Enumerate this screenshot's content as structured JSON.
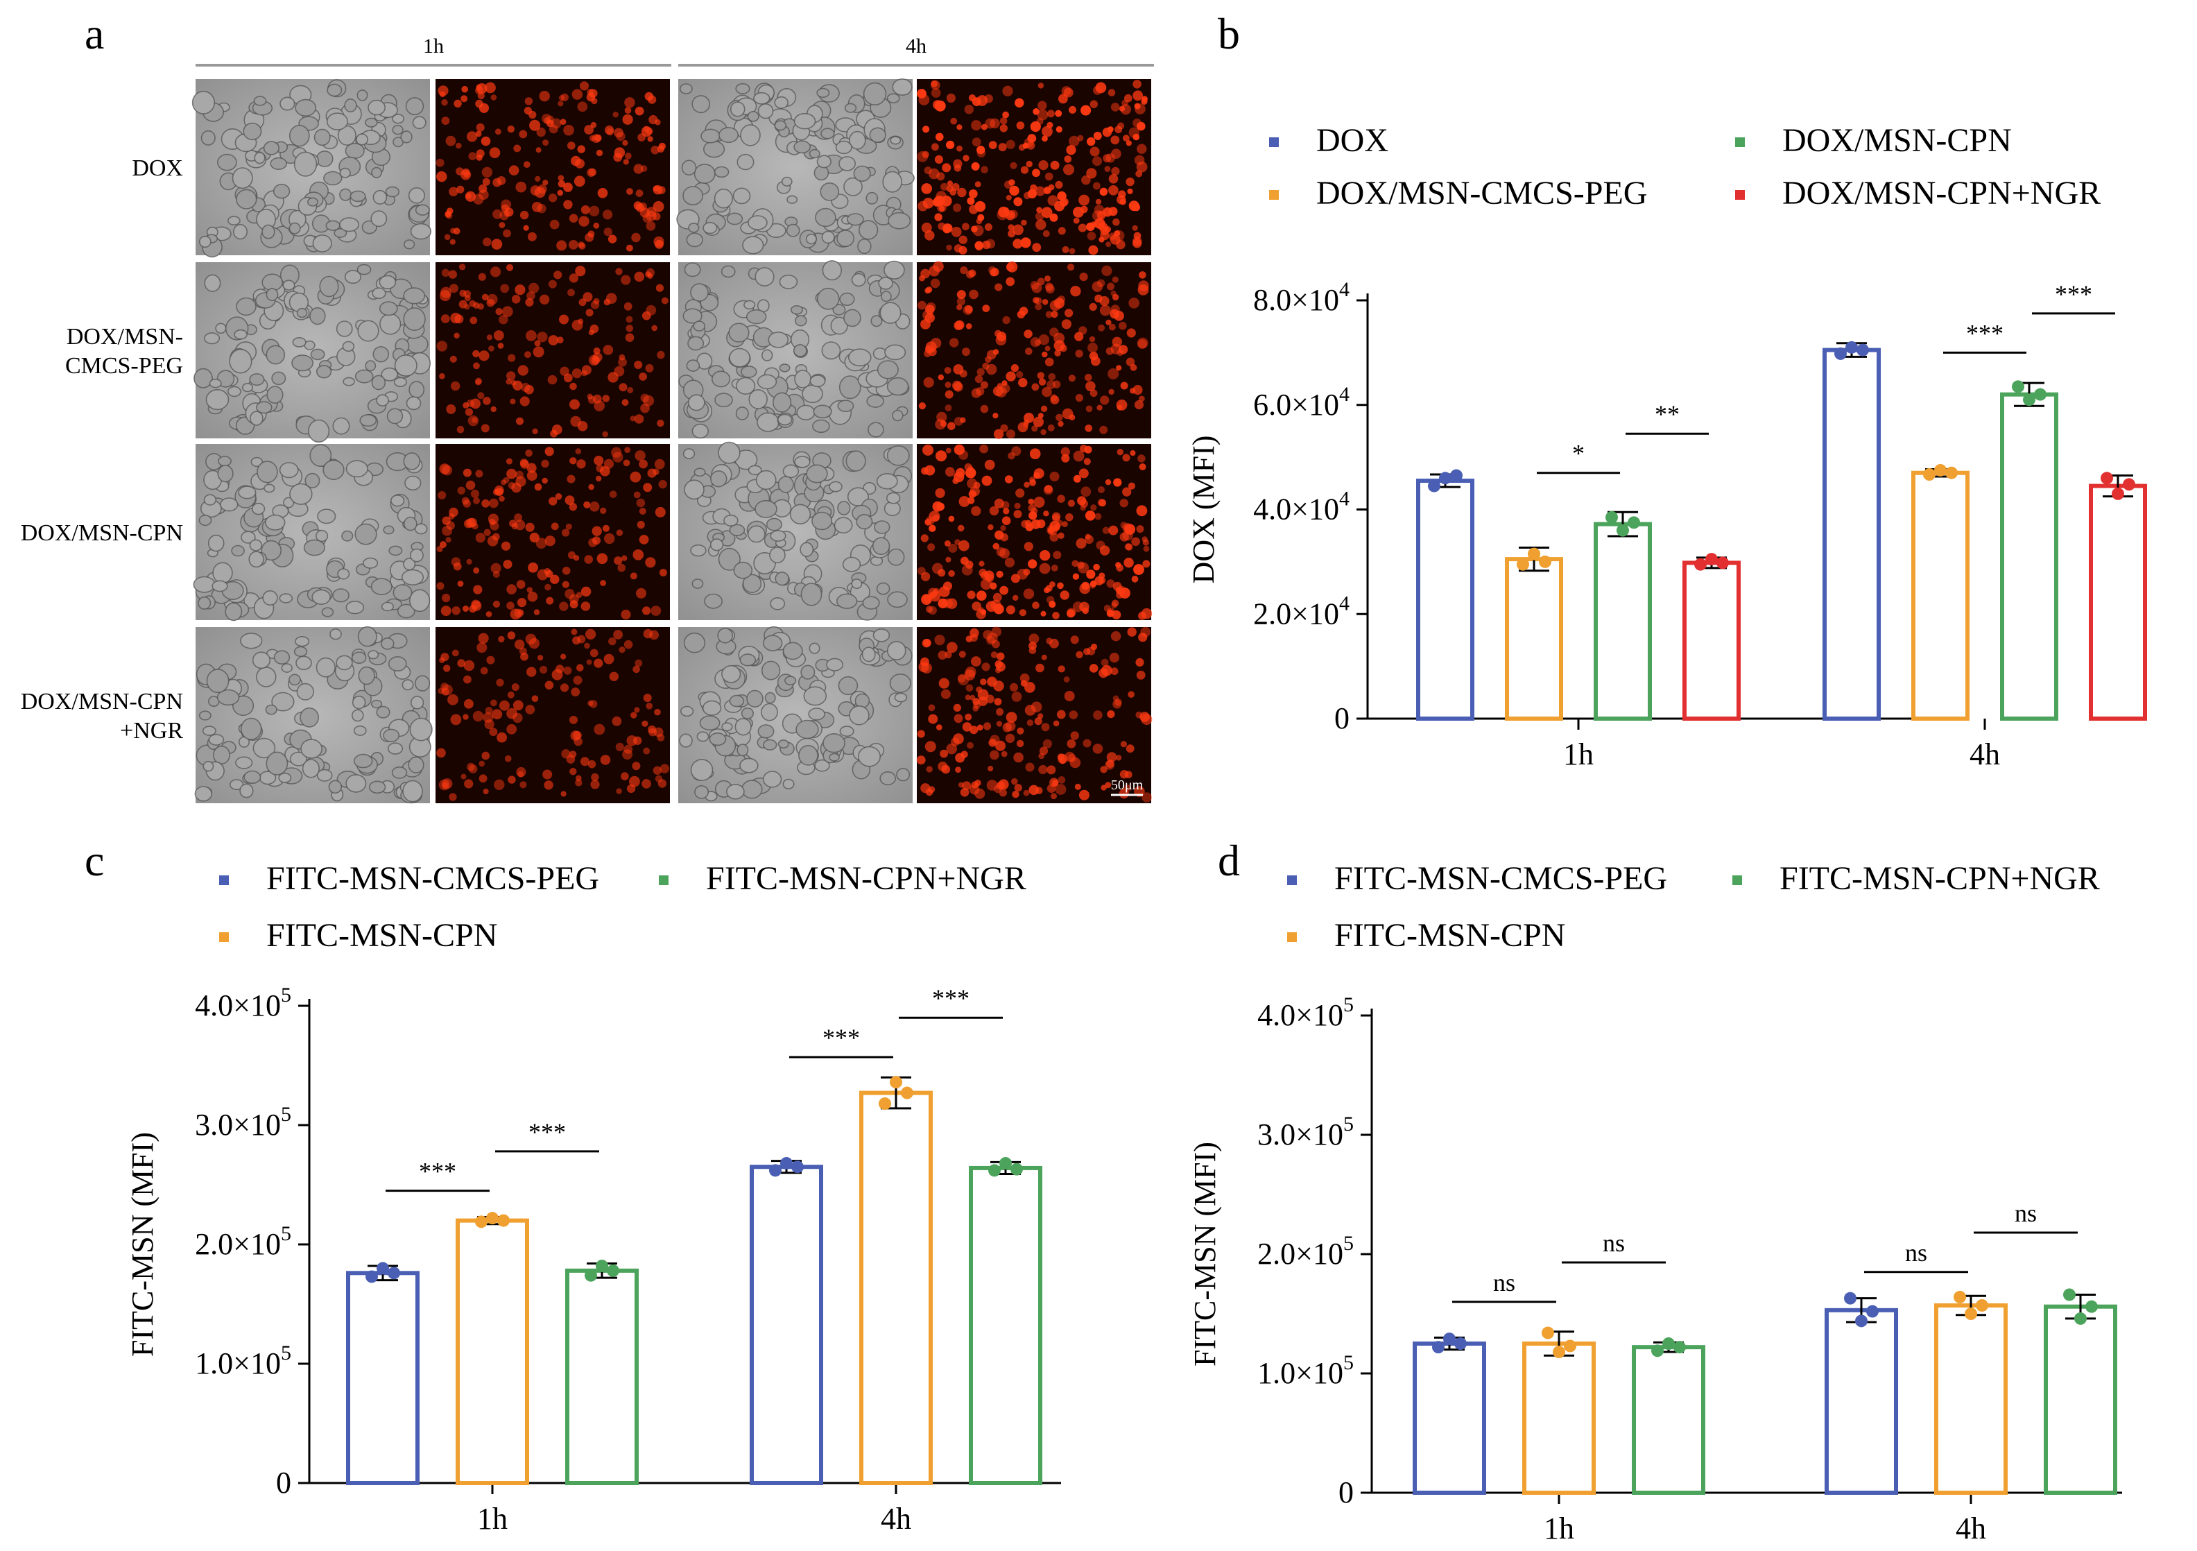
{
  "panel_a": {
    "letter": "a",
    "timepoints": [
      "1h",
      "4h"
    ],
    "rows": [
      {
        "label_lines": [
          "DOX"
        ]
      },
      {
        "label_lines": [
          "DOX/MSN-",
          "CMCS-PEG"
        ]
      },
      {
        "label_lines": [
          "DOX/MSN-CPN"
        ]
      },
      {
        "label_lines": [
          "DOX/MSN-CPN",
          "+NGR"
        ]
      }
    ],
    "fluorescence_intensity": [
      [
        0.62,
        1.0
      ],
      [
        0.42,
        0.72
      ],
      [
        0.52,
        0.95
      ],
      [
        0.36,
        0.68
      ]
    ],
    "scale_bar_label": "50μm",
    "colors": {
      "brightfield": "#9a9a9a",
      "fluorescence": "#ff3a12",
      "background": "#1a0400"
    }
  },
  "chart_data": [
    {
      "panel": "b",
      "type": "bar",
      "categories": [
        "1h",
        "4h"
      ],
      "ylabel": "DOX (MFI)",
      "ylim": [
        0,
        80000
      ],
      "yticks": [
        {
          "v": 0,
          "m": "0",
          "e": ""
        },
        {
          "v": 20000,
          "m": "2.0×10",
          "e": "4"
        },
        {
          "v": 40000,
          "m": "4.0×10",
          "e": "4"
        },
        {
          "v": 60000,
          "m": "6.0×10",
          "e": "4"
        },
        {
          "v": 80000,
          "m": "8.0×10",
          "e": "4"
        }
      ],
      "series": [
        {
          "name": "DOX",
          "color": "#4a5fb4",
          "values": [
            45500,
            70500
          ],
          "sd": [
            1200,
            1300
          ],
          "points": [
            [
              44500,
              46000,
              46500
            ],
            [
              69800,
              71000,
              70500
            ]
          ]
        },
        {
          "name": "DOX/MSN-CMCS-PEG",
          "color": "#f0a030",
          "values": [
            30500,
            47000
          ],
          "sd": [
            2200,
            700
          ],
          "points": [
            [
              29500,
              31500,
              30000
            ],
            [
              46700,
              47500,
              47000
            ]
          ]
        },
        {
          "name": "DOX/MSN-CPN",
          "color": "#4ca45c",
          "values": [
            37200,
            62000
          ],
          "sd": [
            2300,
            2200
          ],
          "points": [
            [
              38500,
              36000,
              37500
            ],
            [
              63500,
              61000,
              62000
            ]
          ]
        },
        {
          "name": "DOX/MSN-CPN+NGR",
          "color": "#e23030",
          "values": [
            29800,
            44500
          ],
          "sd": [
            1000,
            2000
          ],
          "points": [
            [
              29500,
              30500,
              29800
            ],
            [
              46000,
              43000,
              44800
            ]
          ]
        }
      ],
      "legend": {
        "cols": 2,
        "order": [
          0,
          2,
          1,
          3
        ]
      },
      "significance": [
        {
          "cat": 0,
          "from": 1,
          "to": 2,
          "label": "*",
          "y": 47000
        },
        {
          "cat": 0,
          "from": 2,
          "to": 3,
          "label": "**",
          "y": 54500
        },
        {
          "cat": 1,
          "from": 1,
          "to": 2,
          "label": "***",
          "y": 70000
        },
        {
          "cat": 1,
          "from": 2,
          "to": 3,
          "label": "***",
          "y": 77500
        }
      ]
    },
    {
      "panel": "c",
      "type": "bar",
      "categories": [
        "1h",
        "4h"
      ],
      "ylabel": "FITC-MSN (MFI)",
      "ylim": [
        0,
        400000
      ],
      "yticks": [
        {
          "v": 0,
          "m": "0",
          "e": ""
        },
        {
          "v": 100000,
          "m": "1.0×10",
          "e": "5"
        },
        {
          "v": 200000,
          "m": "2.0×10",
          "e": "5"
        },
        {
          "v": 300000,
          "m": "3.0×10",
          "e": "5"
        },
        {
          "v": 400000,
          "m": "4.0×10",
          "e": "5"
        }
      ],
      "series": [
        {
          "name": "FITC-MSN-CMCS-PEG",
          "color": "#4a5fb4",
          "values": [
            176000,
            265000
          ],
          "sd": [
            6000,
            5000
          ],
          "points": [
            [
              173000,
              180000,
              176000
            ],
            [
              262000,
              268000,
              265000
            ]
          ]
        },
        {
          "name": "FITC-MSN-CPN",
          "color": "#f0a030",
          "values": [
            220000,
            327000
          ],
          "sd": [
            3000,
            13000
          ],
          "points": [
            [
              219000,
              222000,
              220000
            ],
            [
              318000,
              336000,
              327000
            ]
          ]
        },
        {
          "name": "FITC-MSN-CPN+NGR",
          "color": "#4ca45c",
          "values": [
            178000,
            264000
          ],
          "sd": [
            6000,
            5000
          ],
          "points": [
            [
              174000,
              182000,
              178000
            ],
            [
              262000,
              268000,
              263000
            ]
          ]
        }
      ],
      "legend": {
        "cols": 2,
        "order": [
          0,
          2,
          1
        ]
      },
      "significance": [
        {
          "cat": 0,
          "from": 0,
          "to": 1,
          "label": "***",
          "y": 245000
        },
        {
          "cat": 0,
          "from": 1,
          "to": 2,
          "label": "***",
          "y": 278000
        },
        {
          "cat": 1,
          "from": 0,
          "to": 1,
          "label": "***",
          "y": 357000
        },
        {
          "cat": 1,
          "from": 1,
          "to": 2,
          "label": "***",
          "y": 390000
        }
      ]
    },
    {
      "panel": "d",
      "type": "bar",
      "categories": [
        "1h",
        "4h"
      ],
      "ylabel": "FITC-MSN (MFI)",
      "ylim": [
        0,
        400000
      ],
      "yticks": [
        {
          "v": 0,
          "m": "0",
          "e": ""
        },
        {
          "v": 100000,
          "m": "1.0×10",
          "e": "5"
        },
        {
          "v": 200000,
          "m": "2.0×10",
          "e": "5"
        },
        {
          "v": 300000,
          "m": "3.0×10",
          "e": "5"
        },
        {
          "v": 400000,
          "m": "4.0×10",
          "e": "5"
        }
      ],
      "series": [
        {
          "name": "FITC-MSN-CMCS-PEG",
          "color": "#4a5fb4",
          "values": [
            125000,
            153000
          ],
          "sd": [
            5000,
            10000
          ],
          "points": [
            [
              122000,
              129000,
              125000
            ],
            [
              163000,
              144000,
              152000
            ]
          ]
        },
        {
          "name": "FITC-MSN-CPN",
          "color": "#f0a030",
          "values": [
            125000,
            157000
          ],
          "sd": [
            10000,
            8000
          ],
          "points": [
            [
              134000,
              118000,
              123000
            ],
            [
              164000,
              150000,
              157000
            ]
          ]
        },
        {
          "name": "FITC-MSN-CPN+NGR",
          "color": "#4ca45c",
          "values": [
            122000,
            156000
          ],
          "sd": [
            4000,
            10000
          ],
          "points": [
            [
              119000,
              125000,
              122000
            ],
            [
              166000,
              146000,
              156000
            ]
          ]
        }
      ],
      "legend": {
        "cols": 2,
        "order": [
          0,
          2,
          1
        ]
      },
      "significance": [
        {
          "cat": 0,
          "from": 0,
          "to": 1,
          "label": "ns",
          "y": 160000
        },
        {
          "cat": 0,
          "from": 1,
          "to": 2,
          "label": "ns",
          "y": 193000
        },
        {
          "cat": 1,
          "from": 0,
          "to": 1,
          "label": "ns",
          "y": 185000
        },
        {
          "cat": 1,
          "from": 1,
          "to": 2,
          "label": "ns",
          "y": 218000
        }
      ]
    }
  ]
}
